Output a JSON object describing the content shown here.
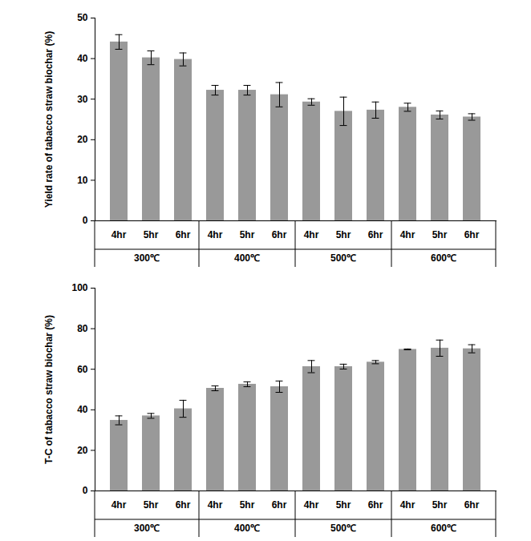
{
  "chart_data": [
    {
      "type": "bar",
      "y_label": "Yield rate of tabacco straw biochar (%)",
      "categories": [
        "4hr",
        "5hr",
        "6hr",
        "4hr",
        "5hr",
        "6hr",
        "4hr",
        "5hr",
        "6hr",
        "4hr",
        "5hr",
        "6hr"
      ],
      "group_labels": [
        "300℃",
        "400℃",
        "500℃",
        "600℃"
      ],
      "values": [
        44.1,
        40.2,
        39.8,
        32.2,
        32.2,
        31.1,
        29.3,
        27.0,
        27.3,
        28.0,
        26.1,
        25.6
      ],
      "errors": [
        1.8,
        1.7,
        1.6,
        1.2,
        1.2,
        3.0,
        0.8,
        3.5,
        2.0,
        1.0,
        1.0,
        0.8
      ],
      "color": "#999999",
      "ylim": [
        0,
        50
      ],
      "yticks": [
        0,
        10,
        20,
        30,
        40,
        50
      ],
      "grid": false
    },
    {
      "type": "bar",
      "y_label": "T-C of tabacco straw biochar (%)",
      "categories": [
        "4hr",
        "5hr",
        "6hr",
        "4hr",
        "5hr",
        "6hr",
        "4hr",
        "5hr",
        "6hr",
        "4hr",
        "5hr",
        "6hr"
      ],
      "group_labels": [
        "300℃",
        "400℃",
        "500℃",
        "600℃"
      ],
      "values": [
        34.8,
        37.0,
        40.5,
        50.6,
        52.6,
        51.4,
        61.3,
        61.3,
        63.5,
        69.8,
        70.4,
        70.1
      ],
      "errors": [
        2.2,
        1.2,
        4.2,
        1.2,
        1.2,
        2.8,
        3.0,
        1.2,
        0.8,
        0.2,
        4.0,
        2.0
      ],
      "color": "#999999",
      "ylim": [
        0,
        100
      ],
      "yticks": [
        0,
        20,
        40,
        60,
        80,
        100
      ],
      "grid": false
    }
  ]
}
